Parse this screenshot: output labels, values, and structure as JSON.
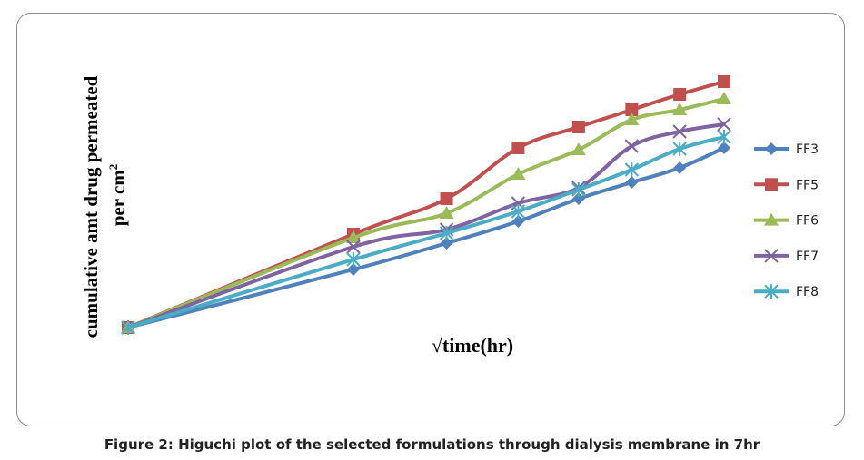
{
  "caption": "Figure 2: Higuchi plot of the selected formulations through dialysis membrane in 7hr",
  "chart_data": {
    "type": "line",
    "title": "",
    "xlabel": "√time(hr)",
    "ylabel": "cumulative amt drug permeated per cm²",
    "ylabel_line1": "cumulative amt drug permeated",
    "ylabel_line2": "per cm",
    "ylabel_sup": "2",
    "x": [
      0,
      1,
      1.414,
      1.732,
      2,
      2.236,
      2.449,
      2.646
    ],
    "xlim": [
      0,
      2.646
    ],
    "ylim": [
      0,
      300
    ],
    "y_units": "arbitrary (no tick labels shown)",
    "grid": false,
    "legend_position": "right",
    "series": [
      {
        "name": "FF3",
        "color": "#4f81bd",
        "marker": "diamond",
        "values": [
          0,
          64,
          93,
          117,
          142,
          160,
          176,
          198
        ]
      },
      {
        "name": "FF5",
        "color": "#c0504d",
        "marker": "square",
        "values": [
          0,
          103,
          142,
          198,
          221,
          240,
          257,
          271
        ]
      },
      {
        "name": "FF6",
        "color": "#9bbb59",
        "marker": "triangle",
        "values": [
          0,
          99,
          126,
          169,
          196,
          229,
          240,
          252
        ]
      },
      {
        "name": "FF7",
        "color": "#8064a2",
        "marker": "x",
        "values": [
          0,
          89,
          108,
          137,
          154,
          200,
          216,
          224
        ]
      },
      {
        "name": "FF8",
        "color": "#4bacc6",
        "marker": "star",
        "values": [
          0,
          75,
          104,
          128,
          152,
          174,
          197,
          210
        ]
      }
    ]
  }
}
